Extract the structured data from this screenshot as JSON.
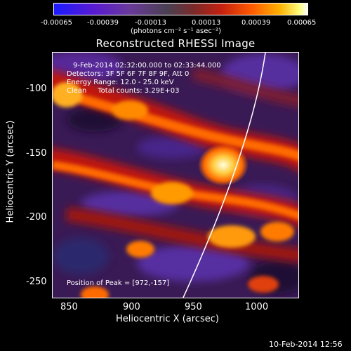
{
  "colorbar": {
    "ticks": [
      "-0.00065",
      "-0.00039",
      "-0.00013",
      "0.00013",
      "0.00039",
      "0.00065"
    ],
    "units": "(photons cm⁻² s⁻¹ asec⁻²)"
  },
  "title": "Reconstructed RHESSI Image",
  "annotations": {
    "time": "9-Feb-2014 02:32:00.000 to 02:33:44.000",
    "detectors": "Detectors: 3F 5F 6F 7F 8F 9F, Att 0",
    "energy": "Energy Range: 12.0 - 25.0 keV",
    "clean": "Clean     Total counts: 3.29E+03",
    "peak": "Position of Peak = [972,-157]"
  },
  "axes": {
    "xlabel": "Heliocentric X (arcsec)",
    "ylabel": "Heliocentric Y (arcsec)",
    "xticks": [
      "850",
      "900",
      "950",
      "1000"
    ],
    "yticks": [
      "-100",
      "-150",
      "-200",
      "-250"
    ]
  },
  "timestamp": "10-Feb-2014 12:56"
}
